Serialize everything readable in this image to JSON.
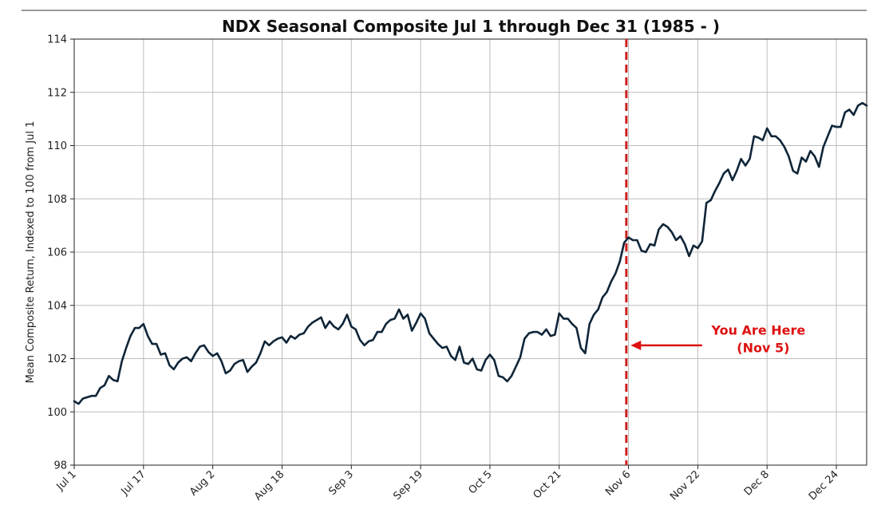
{
  "chart_data": {
    "type": "line",
    "title": "NDX Seasonal Composite Jul 1 through Dec 31 (1985 - )",
    "xlabel": "",
    "ylabel": "Mean Composite Return, Indexed to 100 from Jul 1",
    "ylim": [
      98,
      114
    ],
    "yticks": [
      98,
      100,
      102,
      104,
      106,
      108,
      110,
      112,
      114
    ],
    "xticks": [
      {
        "day": 0,
        "label": "Jul 1"
      },
      {
        "day": 16,
        "label": "Jul 17"
      },
      {
        "day": 32,
        "label": "Aug 2"
      },
      {
        "day": 48,
        "label": "Aug 18"
      },
      {
        "day": 64,
        "label": "Sep 3"
      },
      {
        "day": 80,
        "label": "Sep 19"
      },
      {
        "day": 96,
        "label": "Oct 5"
      },
      {
        "day": 112,
        "label": "Oct 21"
      },
      {
        "day": 128,
        "label": "Nov 6"
      },
      {
        "day": 144,
        "label": "Nov 22"
      },
      {
        "day": 160,
        "label": "Dec 8"
      },
      {
        "day": 176,
        "label": "Dec 24"
      }
    ],
    "xlim": [
      0,
      183
    ],
    "grid": true,
    "line_color": "#0f2538",
    "series": [
      {
        "name": "",
        "points": [
          [
            0,
            100.4
          ],
          [
            1,
            100.3
          ],
          [
            2,
            100.5
          ],
          [
            3,
            100.55
          ],
          [
            4,
            100.6
          ],
          [
            5,
            100.6
          ],
          [
            6,
            100.9
          ],
          [
            7,
            101.0
          ],
          [
            8,
            101.35
          ],
          [
            9,
            101.2
          ],
          [
            10,
            101.15
          ],
          [
            11,
            101.9
          ],
          [
            12,
            102.4
          ],
          [
            13,
            102.85
          ],
          [
            14,
            103.15
          ],
          [
            15,
            103.15
          ],
          [
            16,
            103.3
          ],
          [
            17,
            102.85
          ],
          [
            18,
            102.55
          ],
          [
            19,
            102.55
          ],
          [
            20,
            102.15
          ],
          [
            21,
            102.2
          ],
          [
            22,
            101.75
          ],
          [
            23,
            101.6
          ],
          [
            24,
            101.85
          ],
          [
            25,
            102.0
          ],
          [
            26,
            102.05
          ],
          [
            27,
            101.9
          ],
          [
            28,
            102.2
          ],
          [
            29,
            102.45
          ],
          [
            30,
            102.5
          ],
          [
            31,
            102.25
          ],
          [
            32,
            102.1
          ],
          [
            33,
            102.2
          ],
          [
            34,
            101.9
          ],
          [
            35,
            101.45
          ],
          [
            36,
            101.55
          ],
          [
            37,
            101.8
          ],
          [
            38,
            101.9
          ],
          [
            39,
            101.95
          ],
          [
            40,
            101.5
          ],
          [
            41,
            101.7
          ],
          [
            42,
            101.85
          ],
          [
            43,
            102.2
          ],
          [
            44,
            102.65
          ],
          [
            45,
            102.5
          ],
          [
            46,
            102.65
          ],
          [
            47,
            102.75
          ],
          [
            48,
            102.8
          ],
          [
            49,
            102.6
          ],
          [
            50,
            102.85
          ],
          [
            51,
            102.75
          ],
          [
            52,
            102.9
          ],
          [
            53,
            102.95
          ],
          [
            54,
            103.2
          ],
          [
            55,
            103.35
          ],
          [
            56,
            103.45
          ],
          [
            57,
            103.55
          ],
          [
            58,
            103.15
          ],
          [
            59,
            103.4
          ],
          [
            60,
            103.2
          ],
          [
            61,
            103.1
          ],
          [
            62,
            103.3
          ],
          [
            63,
            103.65
          ],
          [
            64,
            103.2
          ],
          [
            65,
            103.1
          ],
          [
            66,
            102.7
          ],
          [
            67,
            102.5
          ],
          [
            68,
            102.65
          ],
          [
            69,
            102.7
          ],
          [
            70,
            103.0
          ],
          [
            71,
            103.0
          ],
          [
            72,
            103.3
          ],
          [
            73,
            103.45
          ],
          [
            74,
            103.5
          ],
          [
            75,
            103.85
          ],
          [
            76,
            103.5
          ],
          [
            77,
            103.65
          ],
          [
            78,
            103.05
          ],
          [
            79,
            103.35
          ],
          [
            80,
            103.7
          ],
          [
            81,
            103.5
          ],
          [
            82,
            102.95
          ],
          [
            83,
            102.75
          ],
          [
            84,
            102.55
          ],
          [
            85,
            102.4
          ],
          [
            86,
            102.45
          ],
          [
            87,
            102.1
          ],
          [
            88,
            101.95
          ],
          [
            89,
            102.45
          ],
          [
            90,
            101.85
          ],
          [
            91,
            101.8
          ],
          [
            92,
            102.0
          ],
          [
            93,
            101.6
          ],
          [
            94,
            101.55
          ],
          [
            95,
            101.95
          ],
          [
            96,
            102.15
          ],
          [
            97,
            101.95
          ],
          [
            98,
            101.35
          ],
          [
            99,
            101.3
          ],
          [
            100,
            101.15
          ],
          [
            101,
            101.35
          ],
          [
            102,
            101.7
          ],
          [
            103,
            102.05
          ],
          [
            104,
            102.75
          ],
          [
            105,
            102.95
          ],
          [
            106,
            103.0
          ],
          [
            107,
            103.0
          ],
          [
            108,
            102.9
          ],
          [
            109,
            103.1
          ],
          [
            110,
            102.85
          ],
          [
            111,
            102.9
          ],
          [
            112,
            103.7
          ],
          [
            113,
            103.5
          ],
          [
            114,
            103.5
          ],
          [
            115,
            103.3
          ],
          [
            116,
            103.15
          ],
          [
            117,
            102.4
          ],
          [
            118,
            102.2
          ],
          [
            119,
            103.3
          ],
          [
            120,
            103.65
          ],
          [
            121,
            103.85
          ],
          [
            122,
            104.3
          ],
          [
            123,
            104.5
          ],
          [
            124,
            104.9
          ],
          [
            125,
            105.2
          ],
          [
            126,
            105.65
          ],
          [
            127,
            106.35
          ],
          [
            128,
            106.55
          ],
          [
            129,
            106.45
          ],
          [
            130,
            106.45
          ],
          [
            131,
            106.05
          ],
          [
            132,
            106.0
          ],
          [
            133,
            106.3
          ],
          [
            134,
            106.25
          ],
          [
            135,
            106.85
          ],
          [
            136,
            107.05
          ],
          [
            137,
            106.95
          ],
          [
            138,
            106.75
          ],
          [
            139,
            106.45
          ],
          [
            140,
            106.6
          ],
          [
            141,
            106.3
          ],
          [
            142,
            105.85
          ],
          [
            143,
            106.25
          ],
          [
            144,
            106.15
          ],
          [
            145,
            106.4
          ],
          [
            146,
            107.85
          ],
          [
            147,
            107.95
          ],
          [
            148,
            108.3
          ],
          [
            149,
            108.6
          ],
          [
            150,
            108.95
          ],
          [
            151,
            109.1
          ],
          [
            152,
            108.7
          ],
          [
            153,
            109.05
          ],
          [
            154,
            109.5
          ],
          [
            155,
            109.25
          ],
          [
            156,
            109.5
          ],
          [
            157,
            110.35
          ],
          [
            158,
            110.3
          ],
          [
            159,
            110.2
          ],
          [
            160,
            110.65
          ],
          [
            161,
            110.35
          ],
          [
            162,
            110.35
          ],
          [
            163,
            110.2
          ],
          [
            164,
            109.95
          ],
          [
            165,
            109.6
          ],
          [
            166,
            109.05
          ],
          [
            167,
            108.95
          ],
          [
            168,
            109.55
          ],
          [
            169,
            109.4
          ],
          [
            170,
            109.8
          ],
          [
            171,
            109.6
          ],
          [
            172,
            109.2
          ],
          [
            173,
            109.95
          ],
          [
            174,
            110.35
          ],
          [
            175,
            110.75
          ],
          [
            176,
            110.7
          ],
          [
            177,
            110.7
          ],
          [
            178,
            111.25
          ],
          [
            179,
            111.35
          ],
          [
            180,
            111.15
          ],
          [
            181,
            111.5
          ],
          [
            182,
            111.6
          ],
          [
            183,
            111.5
          ]
        ]
      }
    ],
    "marker": {
      "day": 127.5,
      "color": "#cc1f1f",
      "style": "dashed"
    },
    "annotation": {
      "line1": "You Are Here",
      "line2": "(Nov 5)",
      "color": "#dd1111",
      "arrow_from_day": 145,
      "arrow_to_day": 128.5,
      "arrow_y": 102.5,
      "text_day": 158,
      "text_y": 102.9
    }
  }
}
